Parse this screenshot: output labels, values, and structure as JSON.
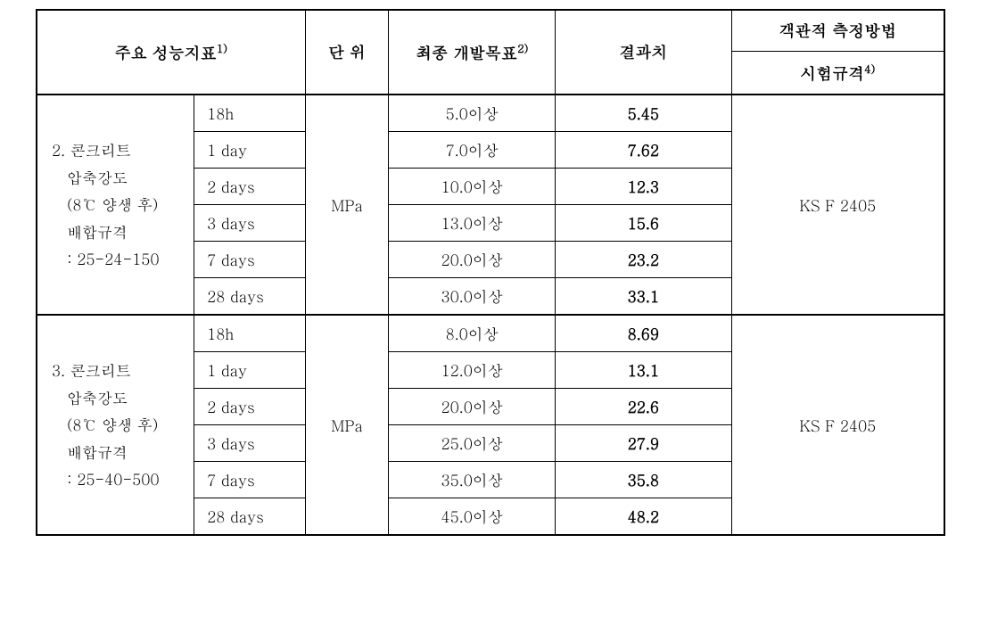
{
  "headers": {
    "indicator": "주요 성능지표",
    "indicator_sup": "1)",
    "unit": "단 위",
    "target": "최종 개발목표",
    "target_sup": "2)",
    "result": "결과치",
    "method_group": "객관적 측정방법",
    "method_sub": "시험규격",
    "method_sup": "4)"
  },
  "colors": {
    "border": "#000000",
    "background": "#ffffff",
    "text": "#000000"
  },
  "sections": [
    {
      "desc_lines": [
        "2. 콘크리트",
        "압축강도",
        "(8℃ 양생 후)",
        "배합규격",
        ": 25-24-150"
      ],
      "unit": "MPa",
      "method": "KS F 2405",
      "rows": [
        {
          "time": "18h",
          "target": "5.0이상",
          "result": "5.45"
        },
        {
          "time": "1 day",
          "target": "7.0이상",
          "result": "7.62"
        },
        {
          "time": "2 days",
          "target": "10.0이상",
          "result": "12.3"
        },
        {
          "time": "3 days",
          "target": "13.0이상",
          "result": "15.6"
        },
        {
          "time": "7 days",
          "target": "20.0이상",
          "result": "23.2"
        },
        {
          "time": "28 days",
          "target": "30.0이상",
          "result": "33.1"
        }
      ]
    },
    {
      "desc_lines": [
        "3. 콘크리트",
        "압축강도",
        "(8℃ 양생 후)",
        "배합규격",
        ": 25-40-500"
      ],
      "unit": "MPa",
      "method": "KS F 2405",
      "rows": [
        {
          "time": "18h",
          "target": "8.0이상",
          "result": "8.69"
        },
        {
          "time": "1 day",
          "target": "12.0이상",
          "result": "13.1"
        },
        {
          "time": "2 days",
          "target": "20.0이상",
          "result": "22.6"
        },
        {
          "time": "3 days",
          "target": "25.0이상",
          "result": "27.9"
        },
        {
          "time": "7 days",
          "target": "35.0이상",
          "result": "35.8"
        },
        {
          "time": "28 days",
          "target": "45.0이상",
          "result": "48.2"
        }
      ]
    }
  ]
}
